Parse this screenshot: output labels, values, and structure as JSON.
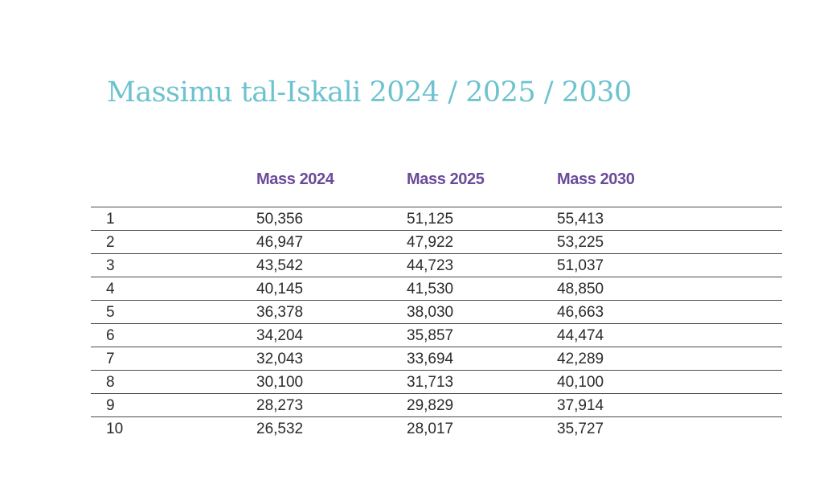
{
  "title": "Massimu tal-Iskali 2024 / 2025 / 2030",
  "colors": {
    "title": "#6cc3cf",
    "header": "#6b4a9a"
  },
  "table": {
    "headers": [
      "",
      "Mass 2024",
      "Mass 2025",
      "Mass 2030"
    ],
    "rows": [
      [
        "1",
        "50,356",
        "51,125",
        "55,413"
      ],
      [
        "2",
        "46,947",
        "47,922",
        "53,225"
      ],
      [
        "3",
        "43,542",
        "44,723",
        "51,037"
      ],
      [
        "4",
        "40,145",
        "41,530",
        "48,850"
      ],
      [
        "5",
        "36,378",
        "38,030",
        "46,663"
      ],
      [
        "6",
        "34,204",
        "35,857",
        "44,474"
      ],
      [
        "7",
        "32,043",
        "33,694",
        "42,289"
      ],
      [
        "8",
        "30,100",
        "31,713",
        "40,100"
      ],
      [
        "9",
        "28,273",
        "29,829",
        "37,914"
      ],
      [
        "10",
        "26,532",
        "28,017",
        "35,727"
      ]
    ]
  }
}
